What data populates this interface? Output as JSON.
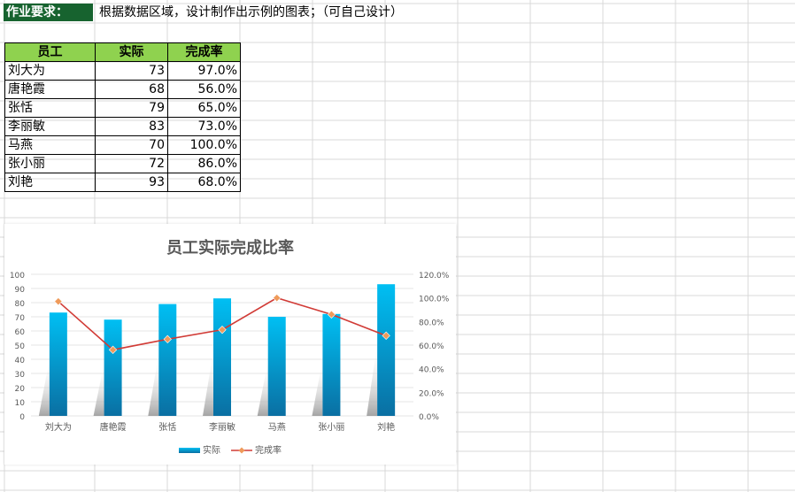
{
  "requirement": {
    "label": "作业要求：",
    "text": "根据数据区域，设计制作出示例的图表；（可自己设计）"
  },
  "table": {
    "headers": [
      "员工",
      "实际",
      "完成率"
    ],
    "rows": [
      {
        "name": "刘大为",
        "actual": "73",
        "rate": "97.0%"
      },
      {
        "name": "唐艳霞",
        "actual": "68",
        "rate": "56.0%"
      },
      {
        "name": "张恬",
        "actual": "79",
        "rate": "65.0%"
      },
      {
        "name": "李丽敏",
        "actual": "83",
        "rate": "73.0%"
      },
      {
        "name": "马燕",
        "actual": "70",
        "rate": "100.0%"
      },
      {
        "name": "张小丽",
        "actual": "72",
        "rate": "86.0%"
      },
      {
        "name": "刘艳",
        "actual": "93",
        "rate": "68.0%"
      }
    ]
  },
  "chart_data": {
    "type": "bar",
    "title": "员工实际完成比率",
    "categories": [
      "刘大为",
      "唐艳霞",
      "张恬",
      "李丽敏",
      "马燕",
      "张小丽",
      "刘艳"
    ],
    "series": [
      {
        "name": "实际",
        "type": "bar",
        "axis": "left",
        "values": [
          73,
          68,
          79,
          83,
          70,
          72,
          93
        ]
      },
      {
        "name": "完成率",
        "type": "line",
        "axis": "right",
        "values": [
          97,
          56,
          65,
          73,
          100,
          86,
          68
        ]
      }
    ],
    "ylim": [
      0,
      100
    ],
    "y_ticks": [
      "0",
      "10",
      "20",
      "30",
      "40",
      "50",
      "60",
      "70",
      "80",
      "90",
      "100"
    ],
    "y2lim": [
      0,
      120
    ],
    "y2_ticks": [
      "0.0%",
      "20.0%",
      "40.0%",
      "60.0%",
      "80.0%",
      "100.0%",
      "120.0%"
    ],
    "legend_position": "bottom",
    "colors": {
      "bar_top": "#00bff3",
      "bar_bottom": "#0a6fa2",
      "line": "#d13b36",
      "marker": "#ef9a5a"
    }
  }
}
